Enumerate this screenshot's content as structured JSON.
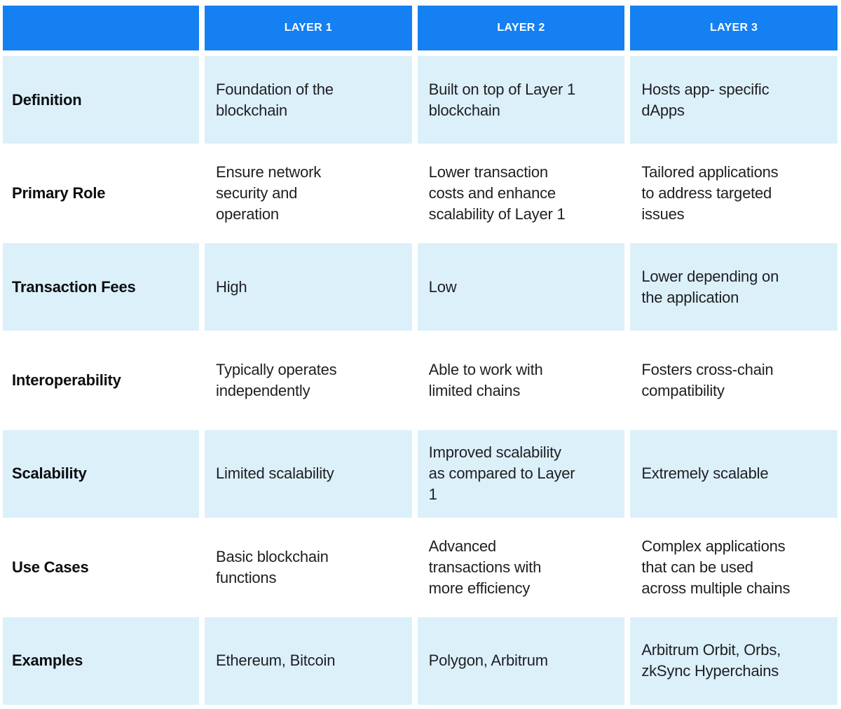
{
  "theme": {
    "header_bg": "#1480F2",
    "header_text": "#FFFFFF",
    "row_alt_bg": "#DCF0FA",
    "row_bg": "#FFFFFF",
    "label_text": "#0C0D10",
    "cell_text": "#1E1F23",
    "page_bg": "#FFFFFF"
  },
  "table": {
    "columns": [
      "",
      "LAYER 1",
      "LAYER 2",
      "LAYER 3"
    ],
    "rows": [
      {
        "label": "Definition",
        "cells": [
          "Foundation of the\nblockchain",
          "Built on top of Layer 1\nblockchain",
          "Hosts app- specific\ndApps"
        ]
      },
      {
        "label": "Primary Role",
        "cells": [
          "Ensure network\nsecurity and\noperation",
          "Lower transaction\ncosts and enhance\nscalability of Layer 1",
          "Tailored applications\nto address targeted\nissues"
        ]
      },
      {
        "label": "Transaction Fees",
        "cells": [
          "High",
          "Low",
          "Lower depending on\nthe application"
        ]
      },
      {
        "label": "Interoperability",
        "cells": [
          "Typically operates\nindependently",
          "Able to work with\nlimited chains",
          "Fosters cross-chain\ncompatibility"
        ]
      },
      {
        "label": "Scalability",
        "cells": [
          "Limited scalability",
          "Improved scalability\nas compared to Layer\n1",
          "Extremely scalable"
        ]
      },
      {
        "label": "Use Cases",
        "cells": [
          "Basic blockchain\nfunctions",
          "Advanced\ntransactions with\nmore efficiency",
          "Complex applications\nthat can be used\nacross multiple chains"
        ]
      },
      {
        "label": "Examples",
        "cells": [
          "Ethereum, Bitcoin",
          "Polygon, Arbitrum",
          "Arbitrum Orbit, Orbs,\nzkSync Hyperchains"
        ]
      }
    ]
  }
}
